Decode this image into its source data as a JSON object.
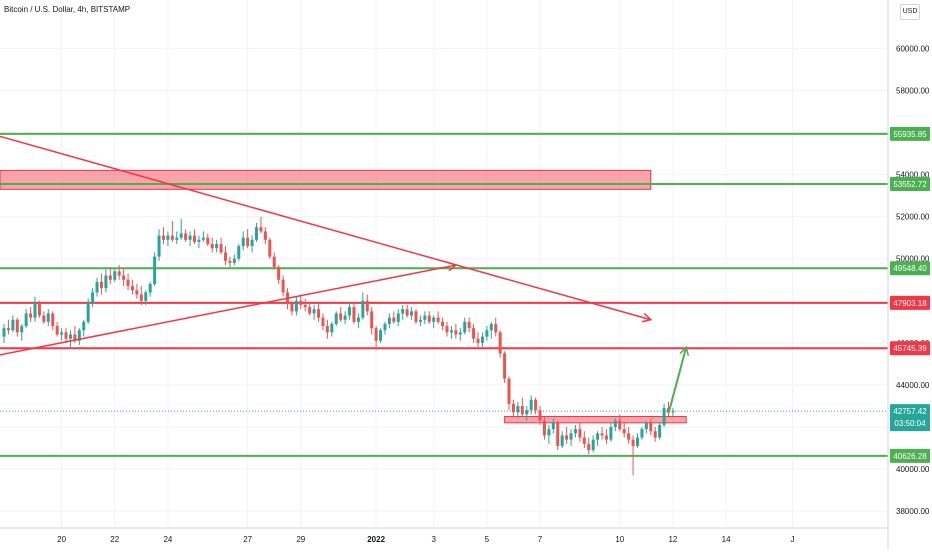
{
  "header": {
    "legend": "Bitcoin / U.S. Dollar, 4h, BITSTAMP",
    "currency": "USD"
  },
  "colors": {
    "up": "#26a69a",
    "down": "#ef5350",
    "support": "#4caf50",
    "resistance": "#f23645",
    "grid": "#f0f3fa"
  },
  "chart_data": {
    "type": "candlestick",
    "title": "Bitcoin / U.S. Dollar, 4h, BITSTAMP",
    "ylim": [
      37200,
      62300
    ],
    "y_ticks": [
      38000,
      40000,
      42000,
      44000,
      46000,
      48000,
      50000,
      52000,
      54000,
      56000,
      58000,
      60000
    ],
    "y_tick_labels": [
      "38000.00",
      "40000.00",
      "42000.00",
      "44000.00",
      "46000.00",
      "48000.00",
      "50000.00",
      "52000.00",
      "54000.00",
      "56000.00",
      "58000.00",
      "60000.00"
    ],
    "x_ticks": [
      {
        "label": "20",
        "idx": 13
      },
      {
        "label": "22",
        "idx": 25
      },
      {
        "label": "24",
        "idx": 37
      },
      {
        "label": "27",
        "idx": 55
      },
      {
        "label": "29",
        "idx": 67
      },
      {
        "label": "2022",
        "idx": 84
      },
      {
        "label": "3",
        "idx": 97
      },
      {
        "label": "5",
        "idx": 109
      },
      {
        "label": "7",
        "idx": 121
      },
      {
        "label": "10",
        "idx": 139
      },
      {
        "label": "12",
        "idx": 151
      },
      {
        "label": "14",
        "idx": 163
      },
      {
        "label": "J",
        "idx": 178
      }
    ],
    "candles": [
      [
        46300,
        46900,
        46000,
        46700
      ],
      [
        46700,
        47100,
        46400,
        46600
      ],
      [
        46600,
        47300,
        46500,
        47100
      ],
      [
        47100,
        47200,
        46300,
        46500
      ],
      [
        46500,
        46900,
        46100,
        46800
      ],
      [
        46800,
        47600,
        46700,
        47400
      ],
      [
        47400,
        47700,
        47000,
        47200
      ],
      [
        47200,
        48200,
        47000,
        47900
      ],
      [
        47900,
        48000,
        47200,
        47300
      ],
      [
        47300,
        47500,
        46900,
        47000
      ],
      [
        47000,
        47600,
        46800,
        47400
      ],
      [
        47400,
        47500,
        46600,
        46800
      ],
      [
        46800,
        47000,
        46300,
        46400
      ],
      [
        46400,
        46700,
        46100,
        46500
      ],
      [
        46500,
        46700,
        46000,
        46200
      ],
      [
        46200,
        46600,
        45700,
        46400
      ],
      [
        46400,
        46800,
        46000,
        46100
      ],
      [
        46100,
        46700,
        45900,
        46600
      ],
      [
        46600,
        47100,
        46300,
        47000
      ],
      [
        47000,
        48100,
        46900,
        47900
      ],
      [
        47900,
        48600,
        47700,
        48400
      ],
      [
        48400,
        49100,
        48200,
        48900
      ],
      [
        48900,
        49300,
        48300,
        48600
      ],
      [
        48600,
        49500,
        48400,
        49200
      ],
      [
        49200,
        49600,
        48800,
        49000
      ],
      [
        49000,
        49500,
        48900,
        49400
      ],
      [
        49400,
        49700,
        49000,
        49200
      ],
      [
        49200,
        49500,
        48700,
        49000
      ],
      [
        49000,
        49300,
        48500,
        48700
      ],
      [
        48700,
        49000,
        48300,
        48500
      ],
      [
        48500,
        48800,
        48100,
        48300
      ],
      [
        48300,
        48700,
        47800,
        48000
      ],
      [
        48000,
        48500,
        47800,
        48400
      ],
      [
        48400,
        48900,
        48200,
        48800
      ],
      [
        48800,
        50300,
        48700,
        50100
      ],
      [
        50100,
        51400,
        49900,
        51100
      ],
      [
        51100,
        51500,
        50700,
        50900
      ],
      [
        50900,
        51300,
        50600,
        51100
      ],
      [
        51100,
        51800,
        50800,
        50900
      ],
      [
        50900,
        51300,
        50700,
        51000
      ],
      [
        51000,
        51900,
        50900,
        51200
      ],
      [
        51200,
        51400,
        50800,
        50900
      ],
      [
        50900,
        51300,
        50600,
        51100
      ],
      [
        51100,
        51400,
        50700,
        50800
      ],
      [
        50800,
        51100,
        50500,
        50900
      ],
      [
        50900,
        51300,
        50800,
        51000
      ],
      [
        51000,
        51200,
        50600,
        50700
      ],
      [
        50700,
        51000,
        50300,
        50500
      ],
      [
        50500,
        50900,
        50300,
        50700
      ],
      [
        50700,
        51000,
        50200,
        50300
      ],
      [
        50300,
        50600,
        49700,
        49900
      ],
      [
        49900,
        50100,
        49600,
        49800
      ],
      [
        49800,
        50200,
        49700,
        50000
      ],
      [
        50000,
        50700,
        49900,
        50600
      ],
      [
        50600,
        51300,
        50400,
        51000
      ],
      [
        51000,
        51400,
        50500,
        50600
      ],
      [
        50600,
        51100,
        50300,
        50900
      ],
      [
        50900,
        51700,
        50800,
        51500
      ],
      [
        51500,
        52000,
        51200,
        51300
      ],
      [
        51300,
        51500,
        50700,
        50900
      ],
      [
        50900,
        51000,
        50000,
        50100
      ],
      [
        50100,
        50300,
        49500,
        49600
      ],
      [
        49600,
        49700,
        48800,
        49000
      ],
      [
        49000,
        49200,
        48200,
        48400
      ],
      [
        48400,
        48600,
        47600,
        47900
      ],
      [
        47900,
        48000,
        47300,
        47500
      ],
      [
        47500,
        48200,
        47300,
        48000
      ],
      [
        48000,
        48300,
        47600,
        47800
      ],
      [
        47800,
        48100,
        47500,
        47700
      ],
      [
        47700,
        47900,
        47300,
        47400
      ],
      [
        47400,
        47800,
        47100,
        47600
      ],
      [
        47600,
        47900,
        47000,
        47200
      ],
      [
        47200,
        47400,
        46600,
        46800
      ],
      [
        46800,
        47100,
        46200,
        46500
      ],
      [
        46500,
        47000,
        46300,
        46900
      ],
      [
        46900,
        47500,
        46800,
        47400
      ],
      [
        47400,
        47700,
        47000,
        47100
      ],
      [
        47100,
        47500,
        46900,
        47300
      ],
      [
        47300,
        47900,
        47100,
        47700
      ],
      [
        47700,
        47900,
        46900,
        47000
      ],
      [
        47000,
        47400,
        46700,
        47200
      ],
      [
        47200,
        48400,
        47100,
        48000
      ],
      [
        48000,
        48300,
        47300,
        47500
      ],
      [
        47500,
        47700,
        46400,
        46700
      ],
      [
        46700,
        46800,
        45800,
        46100
      ],
      [
        46100,
        46700,
        46000,
        46600
      ],
      [
        46600,
        47000,
        46400,
        46900
      ],
      [
        46900,
        47400,
        46700,
        47200
      ],
      [
        47200,
        47500,
        46900,
        47000
      ],
      [
        47000,
        47600,
        46800,
        47400
      ],
      [
        47400,
        47800,
        47100,
        47600
      ],
      [
        47600,
        47800,
        47200,
        47300
      ],
      [
        47300,
        47700,
        47100,
        47500
      ],
      [
        47500,
        47600,
        46900,
        47000
      ],
      [
        47000,
        47300,
        46800,
        47100
      ],
      [
        47100,
        47500,
        46900,
        47300
      ],
      [
        47300,
        47500,
        46900,
        47000
      ],
      [
        47000,
        47300,
        46700,
        47200
      ],
      [
        47200,
        47500,
        46900,
        47000
      ],
      [
        47000,
        47200,
        46600,
        46800
      ],
      [
        46800,
        47000,
        46300,
        46500
      ],
      [
        46500,
        46800,
        46200,
        46600
      ],
      [
        46600,
        46900,
        46200,
        46400
      ],
      [
        46400,
        46700,
        46100,
        46500
      ],
      [
        46500,
        47200,
        46400,
        47000
      ],
      [
        47000,
        47200,
        46500,
        46700
      ],
      [
        46700,
        46900,
        46000,
        46200
      ],
      [
        46200,
        46500,
        45800,
        46000
      ],
      [
        46000,
        46500,
        45800,
        46300
      ],
      [
        46300,
        46800,
        46100,
        46600
      ],
      [
        46600,
        47000,
        46200,
        46900
      ],
      [
        46900,
        47200,
        46300,
        46500
      ],
      [
        46500,
        46600,
        45300,
        45500
      ],
      [
        45500,
        45600,
        44100,
        44300
      ],
      [
        44300,
        44400,
        42800,
        43100
      ],
      [
        43100,
        43300,
        42500,
        42700
      ],
      [
        42700,
        43200,
        42400,
        43000
      ],
      [
        43000,
        43400,
        42500,
        42600
      ],
      [
        42600,
        43000,
        42300,
        42800
      ],
      [
        42800,
        43500,
        42600,
        43300
      ],
      [
        43300,
        43400,
        42600,
        42800
      ],
      [
        42800,
        43000,
        42100,
        42300
      ],
      [
        42300,
        42500,
        41400,
        41600
      ],
      [
        41600,
        42100,
        41200,
        41900
      ],
      [
        41900,
        42400,
        41700,
        42200
      ],
      [
        42200,
        42300,
        40900,
        41100
      ],
      [
        41100,
        41800,
        41000,
        41600
      ],
      [
        41600,
        42000,
        41200,
        41400
      ],
      [
        41400,
        41900,
        41100,
        41700
      ],
      [
        41700,
        42100,
        41500,
        41900
      ],
      [
        41900,
        42200,
        41300,
        41500
      ],
      [
        41500,
        41800,
        41000,
        41200
      ],
      [
        41200,
        41500,
        40700,
        40900
      ],
      [
        40900,
        41600,
        40800,
        41400
      ],
      [
        41400,
        41800,
        41100,
        41700
      ],
      [
        41700,
        42000,
        41400,
        41600
      ],
      [
        41600,
        41900,
        41200,
        41400
      ],
      [
        41400,
        42200,
        41300,
        42000
      ],
      [
        42000,
        42400,
        41800,
        42300
      ],
      [
        42300,
        42600,
        41800,
        41900
      ],
      [
        41900,
        42200,
        41500,
        41700
      ],
      [
        41700,
        42000,
        41200,
        41400
      ],
      [
        41400,
        41600,
        39700,
        41100
      ],
      [
        41100,
        41700,
        41000,
        41500
      ],
      [
        41500,
        42000,
        41400,
        41900
      ],
      [
        41900,
        42300,
        41700,
        42200
      ],
      [
        42200,
        42400,
        41600,
        41800
      ],
      [
        41800,
        42000,
        41300,
        41500
      ],
      [
        41500,
        42200,
        41400,
        42100
      ],
      [
        42100,
        43100,
        42000,
        42900
      ],
      [
        42900,
        43200,
        42500,
        42700
      ],
      [
        42700,
        42900,
        42500,
        42757
      ]
    ],
    "horizontal_levels": [
      {
        "price": 55935.85,
        "label": "55935.85",
        "color": "#4caf50"
      },
      {
        "price": 53552.72,
        "label": "53552.72",
        "color": "#4caf50"
      },
      {
        "price": 49548.4,
        "label": "49548.40",
        "color": "#4caf50"
      },
      {
        "price": 47903.18,
        "label": "47903.18",
        "color": "#f23645"
      },
      {
        "price": 45745.39,
        "label": "45745.39",
        "color": "#f23645"
      },
      {
        "price": 40626.28,
        "label": "40626.28",
        "color": "#4caf50"
      }
    ],
    "last_price": {
      "price": 42757.42,
      "label": "42757.42",
      "countdown": "03:50:04"
    },
    "zones": [
      {
        "p1": 53300,
        "p2": 54200,
        "i1": -4,
        "i2": 146,
        "color": "#f23645"
      },
      {
        "p1": 42200,
        "p2": 42500,
        "i1": 113,
        "i2": 154,
        "color": "#f23645"
      }
    ],
    "trendlines": [
      {
        "i1": -4,
        "p1": 56000,
        "i2": 146,
        "p2": 47100,
        "color": "#f23645",
        "arrow": true
      },
      {
        "i1": -4,
        "p1": 45300,
        "i2": 102,
        "p2": 49700,
        "color": "#f23645",
        "arrow": true
      }
    ],
    "projection": {
      "i1": 150,
      "p1": 42650,
      "i2": 154,
      "p2": 45800,
      "color": "#4caf50"
    }
  }
}
